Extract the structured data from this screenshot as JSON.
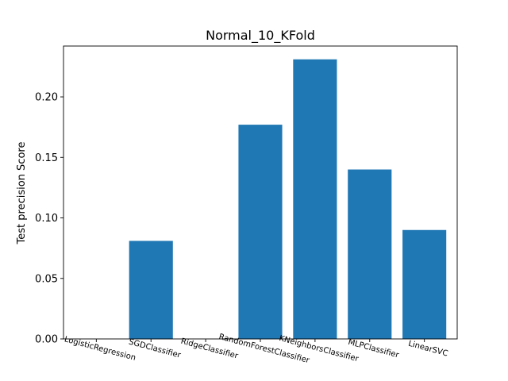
{
  "chart_data": {
    "type": "bar",
    "title": "Normal_10_KFold",
    "xlabel": "",
    "ylabel": "Test precision Score",
    "categories": [
      "LogisticRegression",
      "SGDClassifier",
      "RidgeClassifier",
      "RandomForestClassifier",
      "KNeighborsClassifier",
      "MLPClassifier",
      "LinearSVC"
    ],
    "values": [
      0.0,
      0.081,
      0.0,
      0.177,
      0.231,
      0.14,
      0.09
    ],
    "ylim": [
      0,
      0.242
    ],
    "yticks": [
      0.0,
      0.05,
      0.1,
      0.15,
      0.2
    ],
    "ytick_labels": [
      "0.00",
      "0.05",
      "0.10",
      "0.15",
      "0.20"
    ],
    "grid": false,
    "legend": "none",
    "bar_color": "#1f77b4"
  }
}
